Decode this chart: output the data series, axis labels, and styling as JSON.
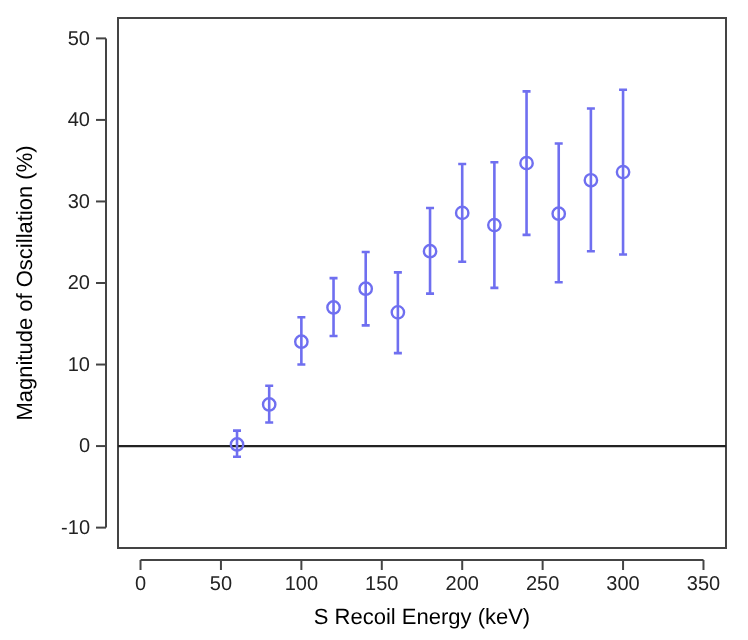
{
  "chart_data": {
    "type": "scatter",
    "xlabel": "S Recoil Energy (keV)",
    "ylabel": "Magnitude of Oscillation (%)",
    "x": [
      60,
      80,
      100,
      120,
      140,
      160,
      180,
      200,
      220,
      240,
      260,
      280,
      300
    ],
    "series": [
      {
        "color": "#6f6ff0",
        "values": [
          0.2,
          5.1,
          12.8,
          17,
          19.3,
          16.4,
          23.9,
          28.6,
          27.1,
          34.7,
          28.5,
          32.6,
          33.6
        ],
        "errors": [
          [
            -1.3,
            1.9
          ],
          [
            2.9,
            7.4
          ],
          [
            10,
            15.8
          ],
          [
            13.5,
            20.6
          ],
          [
            14.8,
            23.8
          ],
          [
            11.4,
            21.3
          ],
          [
            18.7,
            29.2
          ],
          [
            22.6,
            34.6
          ],
          [
            19.4,
            34.8
          ],
          [
            25.9,
            43.5
          ],
          [
            20.1,
            37.1
          ],
          [
            23.9,
            41.4
          ],
          [
            23.5,
            43.7
          ]
        ]
      }
    ],
    "xlim": [
      -14,
      364
    ],
    "xticks": [
      0,
      50,
      100,
      150,
      200,
      250,
      300,
      350
    ],
    "ylim": [
      -12.5,
      52.5
    ],
    "yticks": [
      -10,
      0,
      10,
      20,
      30,
      40,
      50
    ],
    "ref_lines": [
      {
        "axis": "y",
        "value": 0,
        "color": "#222222"
      }
    ],
    "marker": "circle",
    "grid": false
  }
}
